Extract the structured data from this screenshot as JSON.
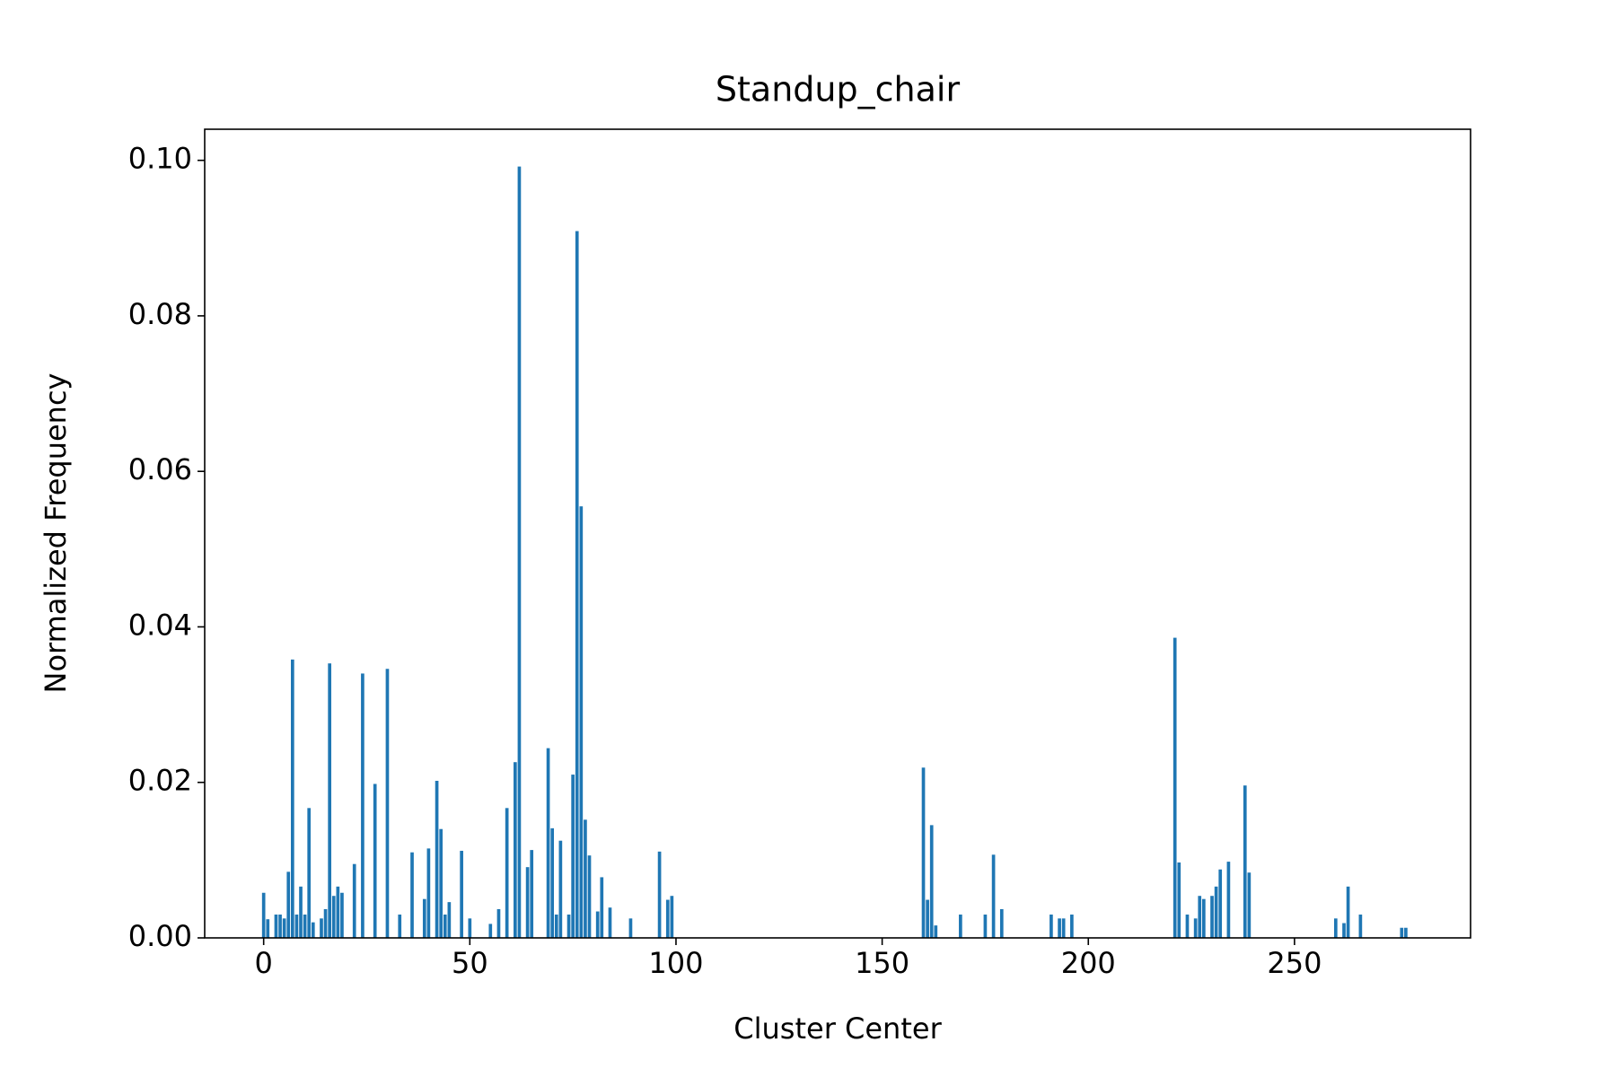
{
  "chart_data": {
    "type": "bar",
    "title": "Standup_chair",
    "x_label": "Cluster Center",
    "y_label": "Normalized Frequency",
    "color": "#1f77b4",
    "x": [
      0,
      1,
      3,
      4,
      5,
      6,
      7,
      8,
      9,
      10,
      11,
      12,
      14,
      15,
      16,
      17,
      18,
      19,
      22,
      24,
      27,
      30,
      33,
      36,
      39,
      40,
      42,
      43,
      44,
      45,
      48,
      50,
      55,
      57,
      59,
      61,
      62,
      64,
      65,
      69,
      70,
      71,
      72,
      74,
      75,
      76,
      77,
      78,
      79,
      81,
      82,
      84,
      89,
      96,
      98,
      99,
      160,
      161,
      162,
      163,
      169,
      175,
      177,
      179,
      191,
      193,
      194,
      196,
      221,
      222,
      224,
      226,
      227,
      228,
      230,
      231,
      232,
      234,
      238,
      239,
      260,
      262,
      263,
      266,
      276,
      277
    ],
    "values": [
      0.0058,
      0.0024,
      0.003,
      0.003,
      0.0025,
      0.0085,
      0.0358,
      0.003,
      0.0066,
      0.003,
      0.0167,
      0.002,
      0.0025,
      0.0037,
      0.0353,
      0.0054,
      0.0066,
      0.0058,
      0.0095,
      0.034,
      0.0198,
      0.0346,
      0.003,
      0.011,
      0.005,
      0.0115,
      0.0202,
      0.014,
      0.003,
      0.0046,
      0.0112,
      0.0025,
      0.0018,
      0.0037,
      0.0167,
      0.0226,
      0.0992,
      0.0091,
      0.0113,
      0.0244,
      0.0141,
      0.003,
      0.0125,
      0.003,
      0.021,
      0.0909,
      0.0555,
      0.0152,
      0.0106,
      0.0034,
      0.0078,
      0.0039,
      0.0025,
      0.0111,
      0.0049,
      0.0054,
      0.0219,
      0.0049,
      0.0145,
      0.0016,
      0.003,
      0.003,
      0.0107,
      0.0037,
      0.003,
      0.0025,
      0.0025,
      0.003,
      0.0386,
      0.0097,
      0.003,
      0.0025,
      0.0054,
      0.005,
      0.0054,
      0.0066,
      0.0088,
      0.0098,
      0.0196,
      0.0084,
      0.0025,
      0.0019,
      0.0066,
      0.003,
      0.0013,
      0.0013
    ],
    "xlim": [
      -14.3,
      292.7
    ],
    "xticks": [
      0,
      50,
      100,
      150,
      200,
      250
    ],
    "ylim": [
      0,
      0.104
    ],
    "yticks": [
      {
        "value": 0,
        "label": "0.00"
      },
      {
        "value": 0.02,
        "label": "0.02"
      },
      {
        "value": 0.04,
        "label": "0.04"
      },
      {
        "value": 0.06,
        "label": "0.06"
      },
      {
        "value": 0.08,
        "label": "0.08"
      },
      {
        "value": 0.1,
        "label": "0.10"
      }
    ]
  }
}
